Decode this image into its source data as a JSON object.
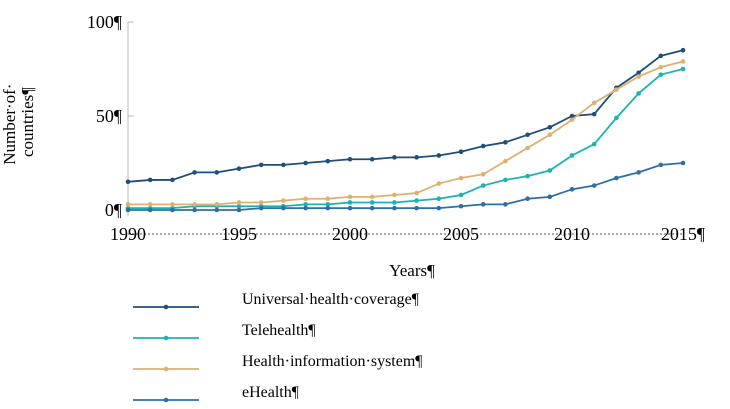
{
  "chart_data": {
    "type": "line",
    "title": "",
    "xlabel": "Years¶",
    "ylabel_line1": "Number·of·",
    "ylabel_line2": "countries¶",
    "xlim": [
      1990,
      2015
    ],
    "ylim": [
      0,
      100
    ],
    "x_ticks": [
      1990,
      1995,
      2000,
      2005,
      2010,
      2015
    ],
    "x_tick_labels": [
      "1990",
      "1995",
      "2000",
      "2005",
      "2010",
      "2015¶"
    ],
    "y_ticks": [
      0,
      50,
      100
    ],
    "y_tick_labels": [
      "0¶",
      "50¶",
      "100¶"
    ],
    "grid": false,
    "legend_position": "bottom",
    "x": [
      1990,
      1991,
      1992,
      1993,
      1994,
      1995,
      1996,
      1997,
      1998,
      1999,
      2000,
      2001,
      2002,
      2003,
      2004,
      2005,
      2006,
      2007,
      2008,
      2009,
      2010,
      2011,
      2012,
      2013,
      2014,
      2015
    ],
    "series": [
      {
        "name": "Universal·health·coverage¶",
        "color": "#1f4e79",
        "values": [
          15,
          16,
          16,
          20,
          20,
          22,
          24,
          24,
          25,
          26,
          27,
          27,
          28,
          28,
          29,
          31,
          34,
          36,
          40,
          44,
          50,
          51,
          65,
          73,
          82,
          85
        ]
      },
      {
        "name": "Telehealth¶",
        "color": "#19b3b3",
        "values": [
          1,
          1,
          1,
          2,
          2,
          2,
          2,
          2,
          3,
          3,
          4,
          4,
          4,
          5,
          6,
          8,
          13,
          16,
          18,
          21,
          29,
          35,
          49,
          62,
          72,
          75
        ]
      },
      {
        "name": "Health·information·system¶",
        "color": "#e0b070",
        "values": [
          3,
          3,
          3,
          3,
          3,
          4,
          4,
          5,
          6,
          6,
          7,
          7,
          8,
          9,
          14,
          17,
          19,
          26,
          33,
          40,
          48,
          57,
          64,
          71,
          76,
          79
        ]
      },
      {
        "name": "eHealth¶",
        "color": "#2e6fa7",
        "values": [
          0,
          0,
          0,
          0,
          0,
          0,
          1,
          1,
          1,
          1,
          1,
          1,
          1,
          1,
          1,
          2,
          3,
          3,
          6,
          7,
          11,
          13,
          17,
          20,
          24,
          25
        ]
      }
    ]
  }
}
